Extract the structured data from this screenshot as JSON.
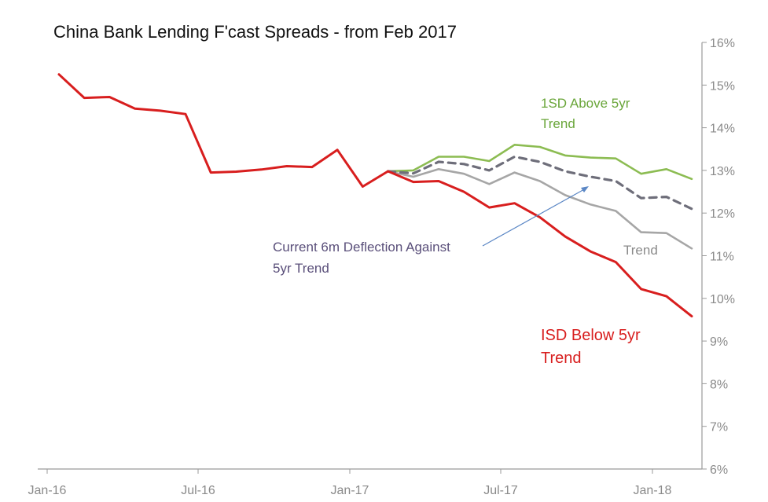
{
  "chart_data": {
    "type": "line",
    "title": "China Bank Lending F'cast Spreads - from Feb 2017",
    "xlabel": "",
    "ylabel": "",
    "ylim": [
      6,
      16
    ],
    "x_tick_labels": [
      "Jan-16",
      "Jul-16",
      "Jan-17",
      "Jul-17",
      "Jan-18"
    ],
    "y_tick_labels": [
      "6%",
      "7%",
      "8%",
      "9%",
      "10%",
      "11%",
      "12%",
      "13%",
      "14%",
      "15%",
      "16%"
    ],
    "x": [
      "2016-01",
      "2016-02",
      "2016-03",
      "2016-04",
      "2016-05",
      "2016-06",
      "2016-07",
      "2016-08",
      "2016-09",
      "2016-10",
      "2016-11",
      "2016-12",
      "2017-01",
      "2017-02",
      "2017-03",
      "2017-04",
      "2017-05",
      "2017-06",
      "2017-07",
      "2017-08",
      "2017-09",
      "2017-10",
      "2017-11",
      "2017-12",
      "2018-01",
      "2018-02"
    ],
    "series": [
      {
        "name": "ISD Below 5yr Trend",
        "color": "#d81e1e",
        "values": [
          15.25,
          14.7,
          14.72,
          14.45,
          14.4,
          14.32,
          12.95,
          12.97,
          13.02,
          13.1,
          13.08,
          13.48,
          12.62,
          12.98,
          12.73,
          12.75,
          12.5,
          12.13,
          12.23,
          11.9,
          11.45,
          11.1,
          10.85,
          10.22,
          10.05,
          9.58
        ]
      },
      {
        "name": "1SD Above 5yr Trend",
        "color": "#8cbc52",
        "values": [
          null,
          null,
          null,
          null,
          null,
          null,
          null,
          null,
          null,
          null,
          null,
          null,
          null,
          12.98,
          13.0,
          13.32,
          13.32,
          13.22,
          13.6,
          13.55,
          13.35,
          13.3,
          13.28,
          12.92,
          13.03,
          12.8
        ]
      },
      {
        "name": "Trend",
        "color": "#a6a6a6",
        "values": [
          null,
          null,
          null,
          null,
          null,
          null,
          null,
          null,
          null,
          null,
          null,
          null,
          null,
          12.98,
          12.85,
          13.03,
          12.92,
          12.68,
          12.95,
          12.75,
          12.42,
          12.2,
          12.05,
          11.55,
          11.53,
          11.17
        ]
      },
      {
        "name": "Current 6m Deflection Against 5yr Trend",
        "color": "#6e6e7a",
        "dashed": true,
        "values": [
          null,
          null,
          null,
          null,
          null,
          null,
          null,
          null,
          null,
          null,
          null,
          null,
          null,
          12.98,
          12.93,
          13.2,
          13.15,
          13.0,
          13.32,
          13.2,
          12.98,
          12.85,
          12.75,
          12.35,
          12.38,
          12.1
        ]
      }
    ],
    "annotations": [
      {
        "id": "upper",
        "lines": [
          "1SD Above 5yr",
          "Trend"
        ],
        "color": "#6aa63a"
      },
      {
        "id": "current",
        "lines": [
          "Current 6m Deflection Against",
          "5yr Trend"
        ],
        "color": "#5a4f7a"
      },
      {
        "id": "trend",
        "lines": [
          "Trend"
        ],
        "color": "#8a8a8a"
      },
      {
        "id": "lower",
        "lines": [
          "ISD Below 5yr",
          "Trend"
        ],
        "color": "#d81e1e"
      }
    ],
    "arrow_color": "#5b87c5",
    "axis_color": "#9a9a9a",
    "grid": false,
    "y_axis_side": "right"
  }
}
